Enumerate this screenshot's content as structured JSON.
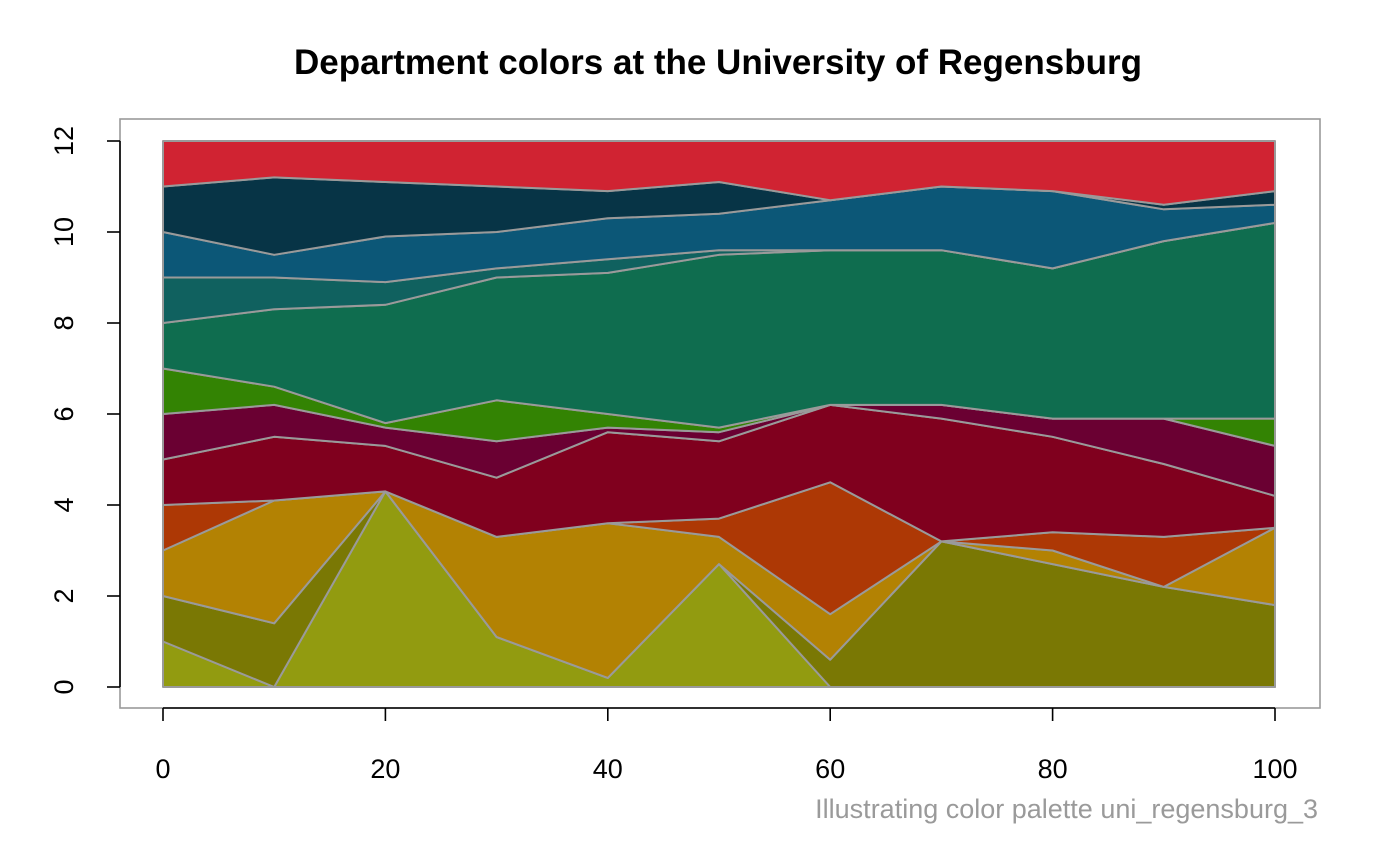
{
  "chart_data": {
    "type": "area",
    "title": "Department colors at the University of Regensburg",
    "caption": "Illustrating color palette uni_regensburg_3",
    "xlim": [
      0,
      100
    ],
    "ylim": [
      0,
      12
    ],
    "x_ticks": [
      0,
      20,
      40,
      60,
      80,
      100
    ],
    "y_ticks": [
      0,
      2,
      4,
      6,
      8,
      10,
      12
    ],
    "x_tick_labels": [
      "0",
      "20",
      "40",
      "60",
      "80",
      "100"
    ],
    "y_tick_labels": [
      "0",
      "2",
      "4",
      "6",
      "8",
      "10",
      "12"
    ],
    "grid": false,
    "legend": "none",
    "outline_color": "#9a9a9a",
    "x": [
      0,
      10,
      20,
      30,
      40,
      50,
      60,
      70,
      80,
      90,
      100
    ],
    "boundaries": [
      [
        0,
        0,
        0,
        0,
        0,
        0,
        0,
        0,
        0,
        0,
        0
      ],
      [
        1.0,
        0.0,
        4.3,
        1.1,
        0.2,
        2.7,
        0.0,
        0.0,
        0.0,
        0.0,
        0.0
      ],
      [
        2.0,
        1.4,
        4.3,
        1.1,
        0.2,
        2.7,
        0.6,
        3.2,
        2.7,
        2.2,
        1.8
      ],
      [
        3.0,
        4.1,
        4.3,
        3.3,
        3.6,
        3.3,
        1.6,
        3.2,
        3.0,
        2.2,
        3.5
      ],
      [
        4.0,
        4.1,
        4.3,
        3.3,
        3.6,
        3.7,
        4.5,
        3.2,
        3.4,
        3.3,
        3.5
      ],
      [
        5.0,
        5.5,
        5.3,
        4.6,
        5.6,
        5.4,
        6.2,
        5.9,
        5.5,
        4.9,
        4.2
      ],
      [
        6.0,
        6.2,
        5.7,
        5.4,
        5.7,
        5.6,
        6.2,
        6.2,
        5.9,
        5.9,
        5.3
      ],
      [
        7.0,
        6.6,
        5.8,
        6.3,
        6.0,
        5.7,
        6.2,
        6.2,
        5.9,
        5.9,
        5.9
      ],
      [
        8.0,
        8.3,
        8.4,
        9.0,
        9.1,
        9.5,
        9.6,
        9.6,
        9.2,
        9.8,
        10.2
      ],
      [
        9.0,
        9.0,
        8.9,
        9.2,
        9.4,
        9.6,
        9.6,
        9.6,
        9.2,
        9.8,
        10.2
      ],
      [
        10.0,
        9.5,
        9.9,
        10.0,
        10.3,
        10.4,
        10.7,
        11.0,
        10.9,
        10.5,
        10.6
      ],
      [
        11.0,
        11.2,
        11.1,
        11.0,
        10.9,
        11.1,
        10.7,
        11.0,
        10.9,
        10.6,
        10.9
      ],
      [
        12,
        12,
        12,
        12,
        12,
        12,
        12,
        12,
        12,
        12,
        12
      ]
    ],
    "series": [
      {
        "color": "#929b10"
      },
      {
        "color": "#7a7804"
      },
      {
        "color": "#b38203"
      },
      {
        "color": "#ad3805"
      },
      {
        "color": "#80001e"
      },
      {
        "color": "#6a0032"
      },
      {
        "color": "#338303"
      },
      {
        "color": "#0f6d4f"
      },
      {
        "color": "#10615f"
      },
      {
        "color": "#0c5777"
      },
      {
        "color": "#073446"
      },
      {
        "color": "#d02332"
      }
    ]
  }
}
